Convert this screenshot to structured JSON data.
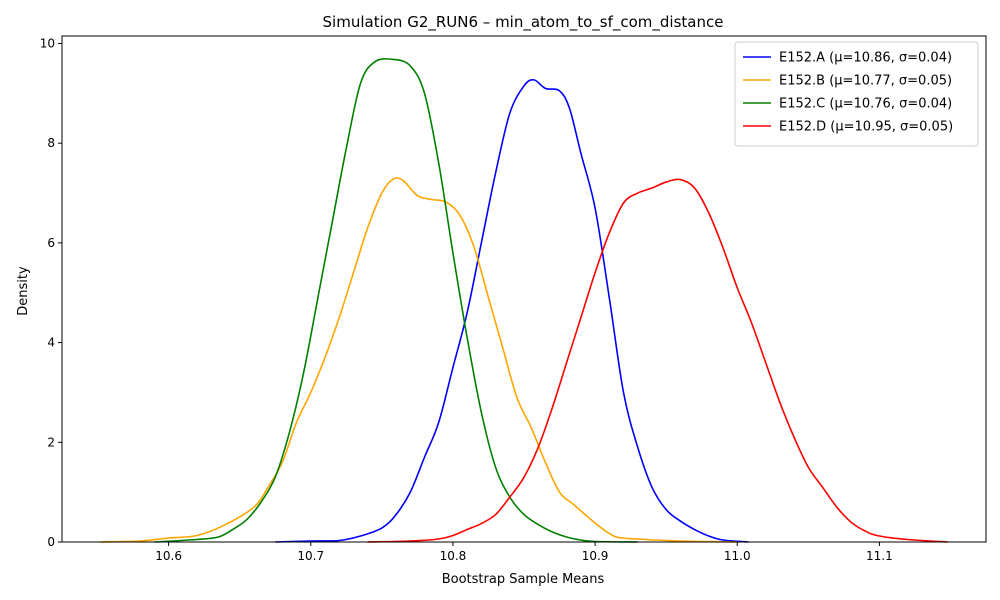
{
  "chart_data": {
    "type": "line",
    "title": "Simulation G2_RUN6 – min_atom_to_sf_com_distance",
    "xlabel": "Bootstrap Sample Means",
    "ylabel": "Density",
    "xlim": [
      10.525,
      11.175
    ],
    "ylim": [
      0,
      10.15
    ],
    "x_ticks": [
      10.6,
      10.7,
      10.8,
      10.9,
      11.0,
      11.1
    ],
    "x_tick_labels": [
      "10.6",
      "10.7",
      "10.8",
      "10.9",
      "11.0",
      "11.1"
    ],
    "y_ticks": [
      0,
      2,
      4,
      6,
      8,
      10
    ],
    "y_tick_labels": [
      "0",
      "2",
      "4",
      "6",
      "8",
      "10"
    ],
    "grid": false,
    "legend_position": "top-right",
    "series": [
      {
        "name": "E152.A (μ=10.86, σ=0.04)",
        "color": "#0000ff",
        "points": [
          [
            10.675,
            0
          ],
          [
            10.7,
            0.02
          ],
          [
            10.72,
            0.03
          ],
          [
            10.735,
            0.12
          ],
          [
            10.75,
            0.28
          ],
          [
            10.76,
            0.55
          ],
          [
            10.77,
            1.0
          ],
          [
            10.78,
            1.7
          ],
          [
            10.79,
            2.4
          ],
          [
            10.8,
            3.5
          ],
          [
            10.81,
            4.6
          ],
          [
            10.82,
            6.0
          ],
          [
            10.83,
            7.4
          ],
          [
            10.84,
            8.6
          ],
          [
            10.85,
            9.15
          ],
          [
            10.857,
            9.27
          ],
          [
            10.865,
            9.1
          ],
          [
            10.875,
            9.05
          ],
          [
            10.882,
            8.7
          ],
          [
            10.89,
            7.8
          ],
          [
            10.9,
            6.7
          ],
          [
            10.91,
            4.9
          ],
          [
            10.92,
            3.0
          ],
          [
            10.93,
            1.9
          ],
          [
            10.94,
            1.1
          ],
          [
            10.95,
            0.65
          ],
          [
            10.96,
            0.42
          ],
          [
            10.97,
            0.25
          ],
          [
            10.98,
            0.12
          ],
          [
            10.99,
            0.04
          ],
          [
            11.008,
            0
          ]
        ]
      },
      {
        "name": "E152.B (μ=10.77, σ=0.05)",
        "color": "#ffa500",
        "points": [
          [
            10.552,
            0
          ],
          [
            10.58,
            0.02
          ],
          [
            10.6,
            0.08
          ],
          [
            10.62,
            0.13
          ],
          [
            10.64,
            0.35
          ],
          [
            10.66,
            0.7
          ],
          [
            10.67,
            1.1
          ],
          [
            10.68,
            1.6
          ],
          [
            10.69,
            2.4
          ],
          [
            10.7,
            3.0
          ],
          [
            10.71,
            3.7
          ],
          [
            10.72,
            4.5
          ],
          [
            10.73,
            5.4
          ],
          [
            10.74,
            6.3
          ],
          [
            10.75,
            7.0
          ],
          [
            10.758,
            7.28
          ],
          [
            10.765,
            7.25
          ],
          [
            10.775,
            6.95
          ],
          [
            10.785,
            6.87
          ],
          [
            10.795,
            6.82
          ],
          [
            10.805,
            6.55
          ],
          [
            10.815,
            5.9
          ],
          [
            10.825,
            4.9
          ],
          [
            10.835,
            3.9
          ],
          [
            10.845,
            2.9
          ],
          [
            10.855,
            2.3
          ],
          [
            10.865,
            1.6
          ],
          [
            10.875,
            1.0
          ],
          [
            10.885,
            0.75
          ],
          [
            10.895,
            0.5
          ],
          [
            10.905,
            0.27
          ],
          [
            10.915,
            0.1
          ],
          [
            10.93,
            0.06
          ],
          [
            10.95,
            0.03
          ],
          [
            10.975,
            0.01
          ],
          [
            11.0,
            0
          ]
        ]
      },
      {
        "name": "E152.C (μ=10.76, σ=0.04)",
        "color": "#008000",
        "points": [
          [
            10.59,
            0
          ],
          [
            10.62,
            0.05
          ],
          [
            10.635,
            0.1
          ],
          [
            10.645,
            0.25
          ],
          [
            10.655,
            0.45
          ],
          [
            10.665,
            0.8
          ],
          [
            10.675,
            1.3
          ],
          [
            10.685,
            2.2
          ],
          [
            10.695,
            3.4
          ],
          [
            10.705,
            4.9
          ],
          [
            10.715,
            6.4
          ],
          [
            10.725,
            7.9
          ],
          [
            10.735,
            9.2
          ],
          [
            10.745,
            9.63
          ],
          [
            10.758,
            9.68
          ],
          [
            10.77,
            9.55
          ],
          [
            10.78,
            9.0
          ],
          [
            10.79,
            7.6
          ],
          [
            10.8,
            5.8
          ],
          [
            10.81,
            4.1
          ],
          [
            10.82,
            2.6
          ],
          [
            10.83,
            1.5
          ],
          [
            10.84,
            0.9
          ],
          [
            10.85,
            0.55
          ],
          [
            10.86,
            0.35
          ],
          [
            10.87,
            0.2
          ],
          [
            10.88,
            0.1
          ],
          [
            10.89,
            0.04
          ],
          [
            10.9,
            0.01
          ],
          [
            10.93,
            0
          ]
        ]
      },
      {
        "name": "E152.D (μ=10.95, σ=0.05)",
        "color": "#ff0000",
        "points": [
          [
            10.74,
            0
          ],
          [
            10.77,
            0.02
          ],
          [
            10.79,
            0.06
          ],
          [
            10.8,
            0.13
          ],
          [
            10.81,
            0.25
          ],
          [
            10.82,
            0.37
          ],
          [
            10.83,
            0.55
          ],
          [
            10.84,
            0.9
          ],
          [
            10.85,
            1.3
          ],
          [
            10.86,
            1.9
          ],
          [
            10.87,
            2.7
          ],
          [
            10.88,
            3.6
          ],
          [
            10.89,
            4.5
          ],
          [
            10.9,
            5.4
          ],
          [
            10.91,
            6.2
          ],
          [
            10.92,
            6.8
          ],
          [
            10.93,
            7.0
          ],
          [
            10.94,
            7.1
          ],
          [
            10.95,
            7.22
          ],
          [
            10.96,
            7.27
          ],
          [
            10.97,
            7.1
          ],
          [
            10.98,
            6.6
          ],
          [
            10.99,
            5.9
          ],
          [
            11.0,
            5.1
          ],
          [
            11.01,
            4.4
          ],
          [
            11.02,
            3.6
          ],
          [
            11.03,
            2.8
          ],
          [
            11.04,
            2.1
          ],
          [
            11.05,
            1.5
          ],
          [
            11.06,
            1.1
          ],
          [
            11.07,
            0.7
          ],
          [
            11.08,
            0.4
          ],
          [
            11.09,
            0.22
          ],
          [
            11.1,
            0.12
          ],
          [
            11.12,
            0.05
          ],
          [
            11.148,
            0
          ]
        ]
      }
    ]
  }
}
